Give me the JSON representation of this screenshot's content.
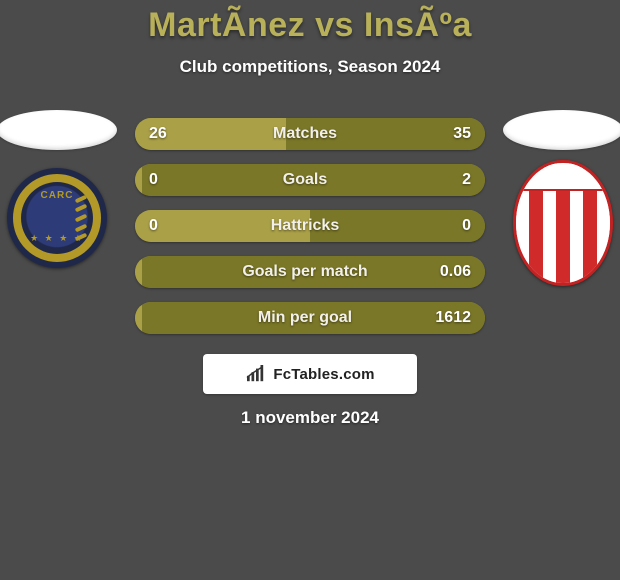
{
  "background_color": "#4b4b4b",
  "title": {
    "text": "MartÃ­nez vs InsÃºa",
    "color": "#b9b05a",
    "fontsize": 34
  },
  "subtitle": {
    "text": "Club competitions, Season 2024",
    "fontsize": 17
  },
  "date": "1 november 2024",
  "branding": {
    "text": "FcTables.com"
  },
  "left_player": {
    "club_text": "CARC",
    "club_colors": {
      "outer": "#b39a28",
      "ring": "#20284a",
      "inner": "#2d3b78"
    }
  },
  "right_player": {
    "club_text": "",
    "club_colors": {
      "stripe": "#d12a2a",
      "bg": "#ffffff",
      "border": "#c32222"
    }
  },
  "pill_base_color": "#8f8a3b",
  "pill_left_fill_color": "#aaa048",
  "pill_right_fill_color": "#7b7728",
  "rows": [
    {
      "label": "Matches",
      "left": "26",
      "right": "35",
      "left_pct": 43,
      "right_pct": 57
    },
    {
      "label": "Goals",
      "left": "0",
      "right": "2",
      "left_pct": 2,
      "right_pct": 98
    },
    {
      "label": "Hattricks",
      "left": "0",
      "right": "0",
      "left_pct": 50,
      "right_pct": 50
    },
    {
      "label": "Goals per match",
      "left": "",
      "right": "0.06",
      "left_pct": 2,
      "right_pct": 98
    },
    {
      "label": "Min per goal",
      "left": "",
      "right": "1612",
      "left_pct": 2,
      "right_pct": 98
    }
  ]
}
